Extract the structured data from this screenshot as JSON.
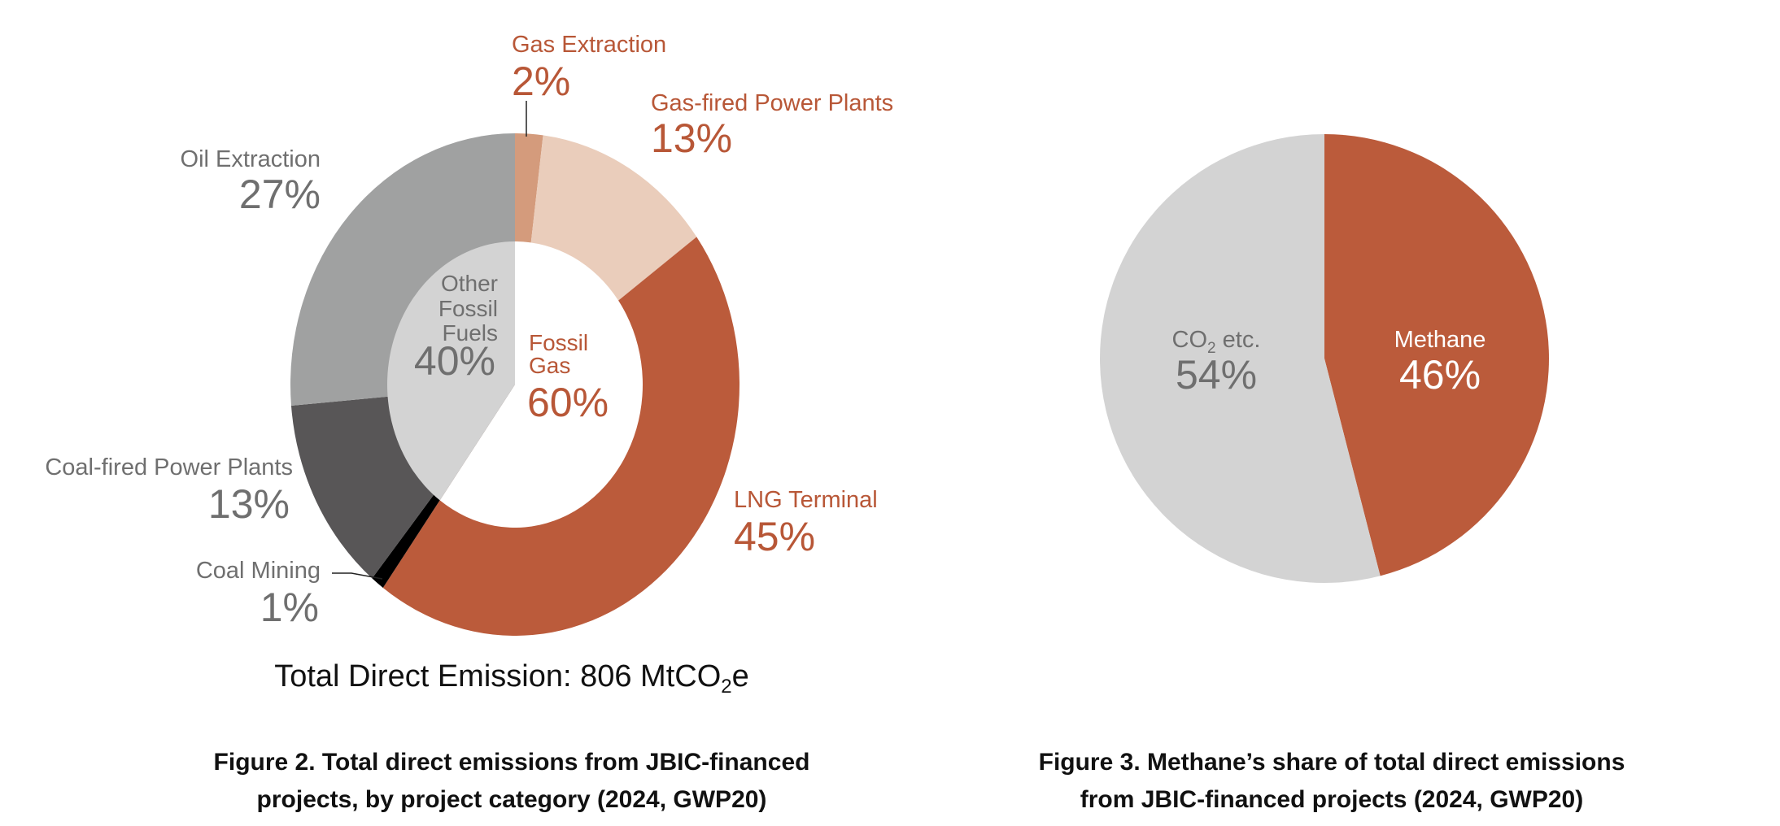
{
  "chart_data": [
    {
      "type": "pie",
      "variant": "nested-donut",
      "title": "Figure 2. Total direct emissions from JBIC-financed projects, by project category (2024, GWP20)",
      "caption_lines": [
        "Figure 2. Total direct emissions from JBIC-financed",
        "projects, by project category (2024, GWP20)"
      ],
      "total": {
        "prefix": "Total Direct Emission: 806 MtCO",
        "sub": "2",
        "suffix": "e"
      },
      "inner": [
        {
          "name_lines": [
            "Fossil",
            "Gas"
          ],
          "value": 60,
          "label": "60%",
          "color": "#ffffff"
        },
        {
          "name_lines": [
            "Other",
            "Fossil",
            "Fuels"
          ],
          "value": 40,
          "label": "40%",
          "color": "#d3d3d3"
        }
      ],
      "outer": [
        {
          "name": "Gas Extraction",
          "value": 2,
          "label": "2%",
          "group": 0,
          "color": "#d49b7c"
        },
        {
          "name": "Gas-fired Power Plants",
          "value": 13,
          "label": "13%",
          "group": 0,
          "color": "#eacdbb"
        },
        {
          "name": "LNG Terminal",
          "value": 45,
          "label": "45%",
          "group": 0,
          "color": "#bb5b3b"
        },
        {
          "name": "Coal Mining",
          "value": 1,
          "label": "1%",
          "group": 1,
          "color": "#000000"
        },
        {
          "name": "Coal-fired Power Plants",
          "value": 13,
          "label": "13%",
          "group": 1,
          "color": "#585657"
        },
        {
          "name": "Oil Extraction",
          "value": 27,
          "label": "27%",
          "group": 1,
          "color": "#a0a1a1"
        }
      ]
    },
    {
      "type": "pie",
      "title": "Figure 3. Methane’s share of total direct emissions from JBIC-financed projects (2024, GWP20)",
      "caption_lines": [
        "Figure 3. Methane’s share of total direct emissions",
        "from JBIC-financed projects (2024, GWP20)"
      ],
      "slices": [
        {
          "name": "Methane",
          "value": 46,
          "label": "46%",
          "color": "#bb5b3b"
        },
        {
          "name_main": "CO",
          "name_sub": "2",
          "name_rest": " etc.",
          "value": 54,
          "label": "54%",
          "color": "#d3d3d3"
        }
      ]
    }
  ]
}
